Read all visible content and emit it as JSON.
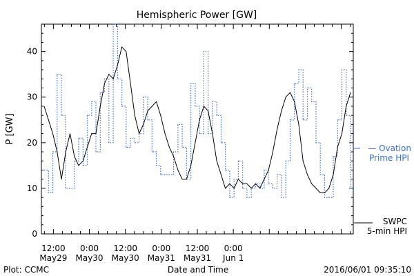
{
  "chart_data": {
    "type": "line",
    "title": "Hemispheric Power [GW]",
    "ylabel": "P [GW]",
    "xlabel": "Date and Time",
    "ylim": [
      0,
      46
    ],
    "y_ticks": [
      0,
      10,
      20,
      30,
      40
    ],
    "x_range_hours": [
      0,
      104
    ],
    "x_ticks": [
      {
        "top": "12:00",
        "bottom": "May29",
        "hour": 4
      },
      {
        "top": "0:00",
        "bottom": "May30",
        "hour": 16
      },
      {
        "top": "12:00",
        "bottom": "May30",
        "hour": 28
      },
      {
        "top": "0:00",
        "bottom": "May31",
        "hour": 40
      },
      {
        "top": "12:00",
        "bottom": "May31",
        "hour": 52
      },
      {
        "top": "0:00",
        "bottom": "Jun 1",
        "hour": 64
      }
    ],
    "series": [
      {
        "name": "Ovation Prime HPI",
        "legend_line1": "— Ovation",
        "legend_line2": "Prime HPI",
        "color": "#3a6fd8",
        "style": "dotted-step",
        "x": [
          0,
          1,
          2,
          3,
          4,
          5,
          6,
          7,
          8,
          9,
          10,
          11,
          12,
          13,
          14,
          15,
          16,
          17,
          18,
          19,
          20,
          21,
          22,
          23,
          24,
          25,
          26,
          27,
          28,
          29,
          30,
          31,
          32,
          33,
          34,
          35,
          36,
          37,
          38,
          39,
          40,
          41,
          42,
          43,
          44,
          45,
          46,
          47,
          48,
          49,
          50,
          51,
          52,
          53,
          54,
          55,
          56,
          57,
          58,
          59,
          60,
          61,
          62,
          63,
          64,
          65,
          66,
          67,
          68,
          69,
          70,
          71
        ],
        "y": [
          14,
          9,
          18,
          35,
          26,
          10,
          10,
          16,
          21,
          15,
          26,
          29,
          18,
          31,
          34,
          20,
          46,
          34,
          28,
          19,
          21,
          20,
          22,
          30,
          25,
          18,
          15,
          13,
          13,
          13,
          18,
          24,
          19,
          12,
          33,
          28,
          22,
          40,
          22,
          29,
          26,
          20,
          14,
          8,
          12,
          16,
          10,
          8,
          10,
          11,
          10,
          14,
          11,
          10,
          13,
          8,
          16,
          25,
          33,
          36,
          25,
          32,
          29,
          20,
          13,
          8,
          8,
          17,
          25,
          36,
          26,
          10
        ]
      },
      {
        "name": "SWPC 5-min HPI",
        "legend_line1": "SWPC",
        "legend_line2": "5-min HPI",
        "color": "#000000",
        "style": "solid",
        "x": [
          0,
          1,
          2,
          3,
          4,
          5,
          6,
          7,
          8,
          9,
          10,
          11,
          12,
          13,
          14,
          15,
          16,
          17,
          18,
          19,
          20,
          21,
          22,
          23,
          24,
          25,
          26,
          27,
          28,
          29,
          30,
          31,
          32,
          33,
          34,
          35,
          36,
          37,
          38,
          39,
          40,
          41,
          42,
          43,
          44,
          45,
          46,
          47,
          48,
          49,
          50,
          51,
          52,
          53,
          54,
          55,
          56,
          57,
          58,
          59,
          60,
          61,
          62,
          63,
          64,
          65,
          66,
          67,
          68,
          69,
          70,
          71
        ],
        "y": [
          28,
          25,
          22,
          18,
          12,
          18,
          22,
          17,
          15,
          16,
          19,
          22,
          22,
          28,
          33,
          35,
          34,
          37,
          41,
          40,
          33,
          26,
          22,
          24,
          27,
          28,
          29,
          26,
          22,
          19,
          17,
          14,
          12,
          12,
          15,
          20,
          25,
          28,
          27,
          22,
          16,
          13,
          10,
          11,
          10,
          12,
          11,
          11,
          10,
          11,
          10,
          12,
          14,
          18,
          23,
          27,
          30,
          31,
          29,
          24,
          16,
          13,
          11,
          10,
          9,
          9,
          10,
          13,
          19,
          22,
          28,
          31
        ]
      }
    ],
    "grid": false,
    "legend_position": "right"
  },
  "footer": {
    "left": "Plot: CCMC",
    "right": "2016/06/01 09:35:10"
  }
}
